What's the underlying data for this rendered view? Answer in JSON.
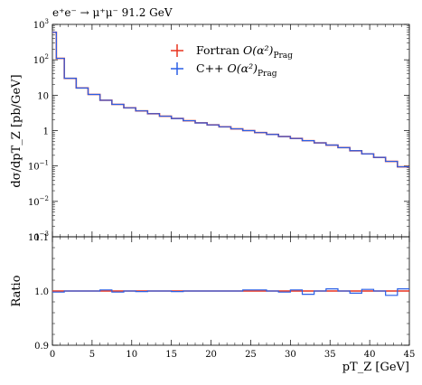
{
  "chart_data": {
    "type": "line",
    "title": "e⁺e⁻ → μ⁺μ⁻ 91.2 GeV",
    "xlabel": "pT_Z [GeV]",
    "ylabel_main": "dσ/dpT_Z [pb/GeV]",
    "ylabel_ratio": "Ratio",
    "xlim": [
      0,
      45
    ],
    "ylim_main": [
      0.001,
      1000
    ],
    "ylim_ratio": [
      0.9,
      1.1
    ],
    "y_scale_main": "log",
    "grid": false,
    "legend_position": "top-right",
    "x_ticks": [
      "0",
      "5",
      "10",
      "15",
      "20",
      "25",
      "30",
      "35",
      "40",
      "45"
    ],
    "y_ticks_main": [
      {
        "base": "10",
        "exp": "3"
      },
      {
        "base": "10",
        "exp": "2"
      },
      {
        "base": "10",
        "exp": ""
      },
      {
        "base": "1",
        "exp": ""
      },
      {
        "base": "10",
        "exp": "−1"
      },
      {
        "base": "10",
        "exp": "−2"
      },
      {
        "base": "10",
        "exp": "−3"
      }
    ],
    "y_ticks_ratio": [
      "1.1",
      "1.0",
      "0.9"
    ],
    "legend": [
      {
        "label": "Fortran",
        "math": "O(α²)",
        "sub": "Prag",
        "color": "#e8321e"
      },
      {
        "label": "C++",
        "math": "O(α²)",
        "sub": "Prag",
        "color": "#2a5fe6"
      }
    ],
    "bin_edges": [
      0,
      0.5,
      1.5,
      3,
      4.5,
      6,
      7.5,
      9,
      10.5,
      12,
      13.5,
      15,
      16.5,
      18,
      19.5,
      21,
      22.5,
      24,
      25.5,
      27,
      28.5,
      30,
      31.5,
      33,
      34.5,
      36,
      37.5,
      39,
      40.5,
      42,
      43.5,
      45
    ],
    "series": [
      {
        "name": "Fortran O(α²)_Prag",
        "color": "#e8321e",
        "values": [
          600,
          110,
          30,
          16,
          10.5,
          7.2,
          5.5,
          4.4,
          3.6,
          3.0,
          2.55,
          2.2,
          1.9,
          1.65,
          1.45,
          1.28,
          1.12,
          1.0,
          0.88,
          0.78,
          0.68,
          0.6,
          0.52,
          0.45,
          0.39,
          0.33,
          0.27,
          0.22,
          0.175,
          0.135,
          0.095
        ],
        "ratio": [
          1.0,
          1.0,
          1.0,
          1.0,
          1.0,
          1.0,
          1.0,
          1.0,
          1.0,
          1.0,
          1.0,
          1.0,
          1.0,
          1.0,
          1.0,
          1.0,
          1.0,
          1.0,
          1.0,
          1.0,
          1.0,
          1.0,
          1.0,
          1.0,
          1.0,
          1.0,
          1.0,
          1.0,
          1.0,
          1.0,
          1.0
        ]
      },
      {
        "name": "C++ O(α²)_Prag",
        "color": "#2a5fe6",
        "values": [
          600,
          110,
          30,
          16,
          10.5,
          7.2,
          5.5,
          4.4,
          3.6,
          3.0,
          2.55,
          2.2,
          1.9,
          1.65,
          1.45,
          1.28,
          1.12,
          1.0,
          0.88,
          0.78,
          0.68,
          0.6,
          0.52,
          0.45,
          0.39,
          0.33,
          0.27,
          0.22,
          0.175,
          0.135,
          0.095
        ],
        "ratio": [
          0.998,
          0.998,
          1.0,
          1.0,
          1.0,
          1.002,
          0.998,
          1.0,
          0.999,
          1.0,
          1.0,
          0.999,
          1.0,
          1.0,
          1.0,
          1.0,
          1.0,
          1.002,
          1.002,
          1.0,
          0.998,
          1.002,
          0.994,
          1.0,
          1.004,
          1.0,
          0.996,
          1.003,
          1.0,
          0.992,
          1.004
        ]
      }
    ]
  }
}
